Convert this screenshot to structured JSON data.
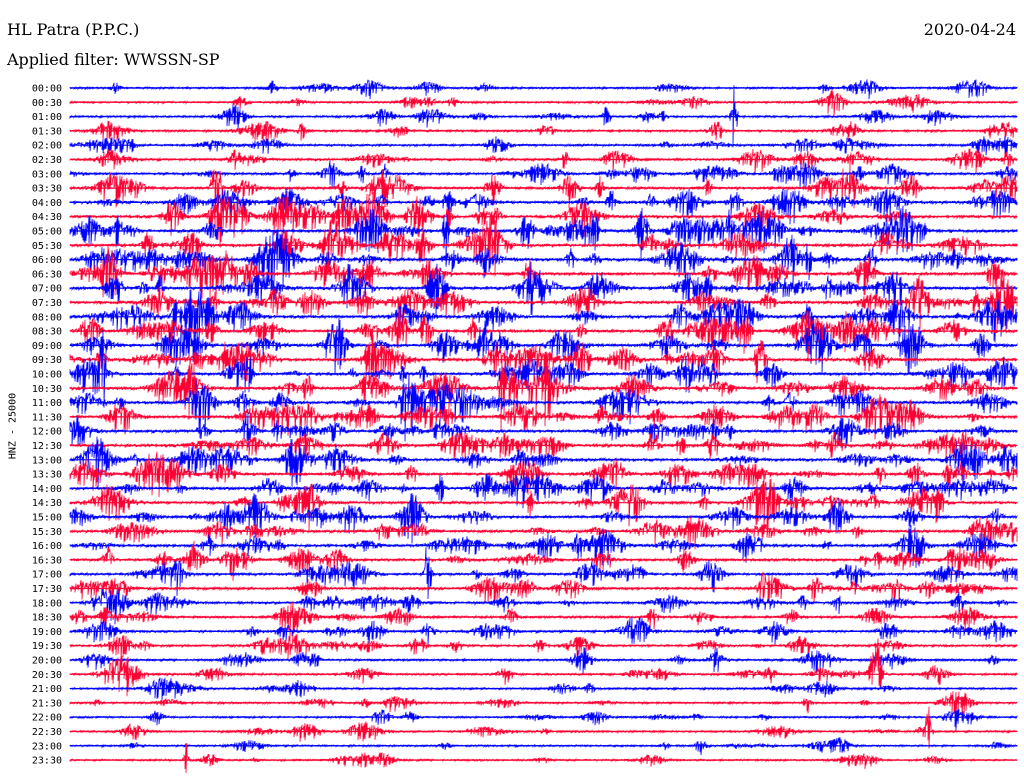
{
  "header": {
    "station": "HL Patra (P.P.C.)",
    "date": "2020-04-24",
    "filter": "Applied filter: WWSSN-SP"
  },
  "colors": {
    "even_row": "#0000ff",
    "odd_row": "#ff0033",
    "background": "#ffffff"
  },
  "chart_data": {
    "type": "line",
    "title": "HL Patra (P.P.C.)",
    "ylabel": "HNZ - 25000",
    "xlabel": "",
    "grid": false,
    "rows": [
      "00:00",
      "00:30",
      "01:00",
      "01:30",
      "02:00",
      "02:30",
      "03:00",
      "03:30",
      "04:00",
      "04:30",
      "05:00",
      "05:30",
      "06:00",
      "06:30",
      "07:00",
      "07:30",
      "08:00",
      "08:30",
      "09:00",
      "09:30",
      "10:00",
      "10:30",
      "11:00",
      "11:30",
      "12:00",
      "12:30",
      "13:00",
      "13:30",
      "14:00",
      "14:30",
      "15:00",
      "15:30",
      "16:00",
      "16:30",
      "17:00",
      "17:30",
      "18:00",
      "18:30",
      "19:00",
      "19:30",
      "20:00",
      "20:30",
      "21:00",
      "21:30",
      "22:00",
      "22:30",
      "23:00",
      "23:30"
    ],
    "row_duration_minutes": 30,
    "row_activity": [
      0.35,
      0.35,
      0.4,
      0.45,
      0.5,
      0.55,
      0.65,
      0.8,
      0.9,
      0.95,
      1.0,
      1.0,
      1.0,
      1.0,
      1.0,
      1.0,
      1.0,
      1.0,
      1.0,
      1.0,
      0.95,
      0.95,
      0.9,
      0.9,
      0.9,
      0.9,
      0.9,
      0.85,
      0.85,
      0.85,
      0.8,
      0.8,
      0.8,
      0.75,
      0.7,
      0.7,
      0.65,
      0.6,
      0.55,
      0.5,
      0.45,
      0.4,
      0.35,
      0.35,
      0.3,
      0.3,
      0.25,
      0.25
    ]
  }
}
